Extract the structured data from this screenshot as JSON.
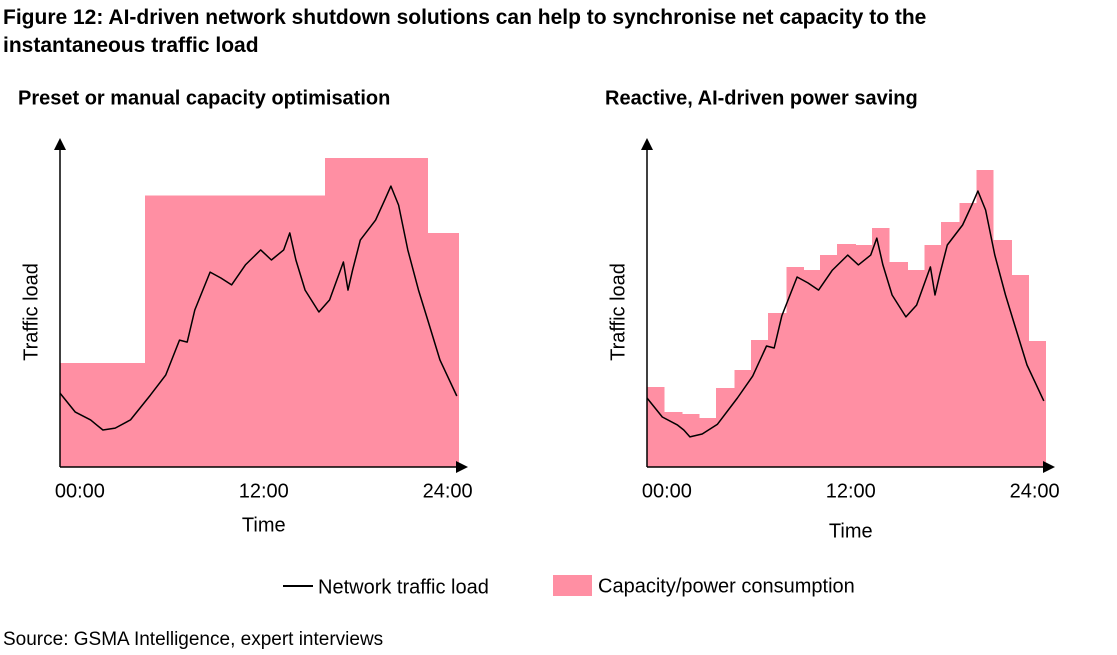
{
  "title": "Figure 12: AI-driven network shutdown solutions can help to synchronise net capacity to the instantaneous traffic load",
  "source": "Source: GSMA Intelligence, expert interviews",
  "chart_data": [
    {
      "type": "step-line",
      "title": "Preset or manual capacity optimisation",
      "x_label": "Time",
      "y_label": "Traffic load",
      "xlim": [
        -1.3,
        25.2
      ],
      "ylim": [
        0,
        100
      ],
      "xticks": [
        {
          "value": 0,
          "label": "00:00"
        },
        {
          "value": 12,
          "label": "12:00"
        },
        {
          "value": 24,
          "label": "24:00"
        }
      ],
      "series": [
        {
          "name": "Capacity/power consumption",
          "type": "step",
          "color": "#ff8fa3",
          "bins": [
            -1.3,
            4.25,
            16.0,
            22.7,
            24.7
          ],
          "values": [
            31.8,
            83,
            94.5,
            71.6
          ]
        },
        {
          "name": "Network traffic load",
          "type": "line",
          "color": "#000000",
          "x": [
            -1.3,
            -0.3,
            0.7,
            1.1,
            1.5,
            2.3,
            3.3,
            4.6,
            5.6,
            6.5,
            7.0,
            7.5,
            8.5,
            9.2,
            9.9,
            10.8,
            11.8,
            12.5,
            13.3,
            13.7,
            14.1,
            14.7,
            15.6,
            16.3,
            17.2,
            17.5,
            17.8,
            18.3,
            19.3,
            19.9,
            20.3,
            20.8,
            21.4,
            22.1,
            22.7,
            23.5,
            24.6
          ],
          "values": [
            22.6,
            16.8,
            14.4,
            12.8,
            11.3,
            11.9,
            14.4,
            22.0,
            28.1,
            38.8,
            38.2,
            48.0,
            59.6,
            57.8,
            55.7,
            61.8,
            66.4,
            63.3,
            66.4,
            71.6,
            63.3,
            54.1,
            47.4,
            51.1,
            62.7,
            54.1,
            60.2,
            69.4,
            75.5,
            81.7,
            85.9,
            80.1,
            66.4,
            54.1,
            45.0,
            32.7,
            21.7
          ]
        }
      ]
    },
    {
      "type": "step-line",
      "title": "Reactive, AI-driven power saving",
      "x_label": "Time",
      "y_label": "Traffic load",
      "xlim": [
        -1.3,
        25.2
      ],
      "ylim": [
        0,
        100
      ],
      "xticks": [
        {
          "value": 0,
          "label": "00:00"
        },
        {
          "value": 12,
          "label": "12:00"
        },
        {
          "value": 24,
          "label": "24:00"
        }
      ],
      "series": [
        {
          "type": "step",
          "color": "#ff8fa3",
          "bins": [
            -1.3,
            -0.2,
            1.0,
            2.1,
            3.2,
            4.4,
            5.5,
            6.6,
            7.8,
            8.9,
            10.0,
            11.1,
            12.3,
            13.4,
            14.5,
            15.7,
            16.8,
            17.9,
            19.1,
            20.2,
            21.3,
            22.5,
            23.6,
            24.7
          ],
          "values": [
            24.5,
            16.8,
            16.2,
            15.0,
            24.2,
            29.7,
            38.8,
            47.1,
            61.2,
            60.2,
            64.8,
            68.2,
            67.9,
            73.1,
            62.7,
            60.2,
            67.9,
            74.9,
            80.7,
            90.8,
            69.4,
            58.7,
            38.5
          ]
        },
        {
          "type": "line",
          "color": "#000000",
          "x": [
            -1.3,
            -0.3,
            0.7,
            1.1,
            1.5,
            2.3,
            3.3,
            4.6,
            5.6,
            6.5,
            7.0,
            7.5,
            8.5,
            9.2,
            9.9,
            10.8,
            11.8,
            12.5,
            13.3,
            13.7,
            14.1,
            14.7,
            15.6,
            16.3,
            17.2,
            17.5,
            17.8,
            18.3,
            19.3,
            19.9,
            20.3,
            20.8,
            21.4,
            22.1,
            22.7,
            23.5,
            24.6
          ],
          "values": [
            21.1,
            15.3,
            12.8,
            11.3,
            9.2,
            10.1,
            13.1,
            21.1,
            27.8,
            37.0,
            36.4,
            46.2,
            58.1,
            56.3,
            54.1,
            60.2,
            64.8,
            61.8,
            64.8,
            70.0,
            61.8,
            52.6,
            45.9,
            49.5,
            61.2,
            52.6,
            58.7,
            67.9,
            74.0,
            80.1,
            84.4,
            78.6,
            64.8,
            52.6,
            43.4,
            31.2,
            20.2
          ]
        }
      ]
    }
  ]
}
